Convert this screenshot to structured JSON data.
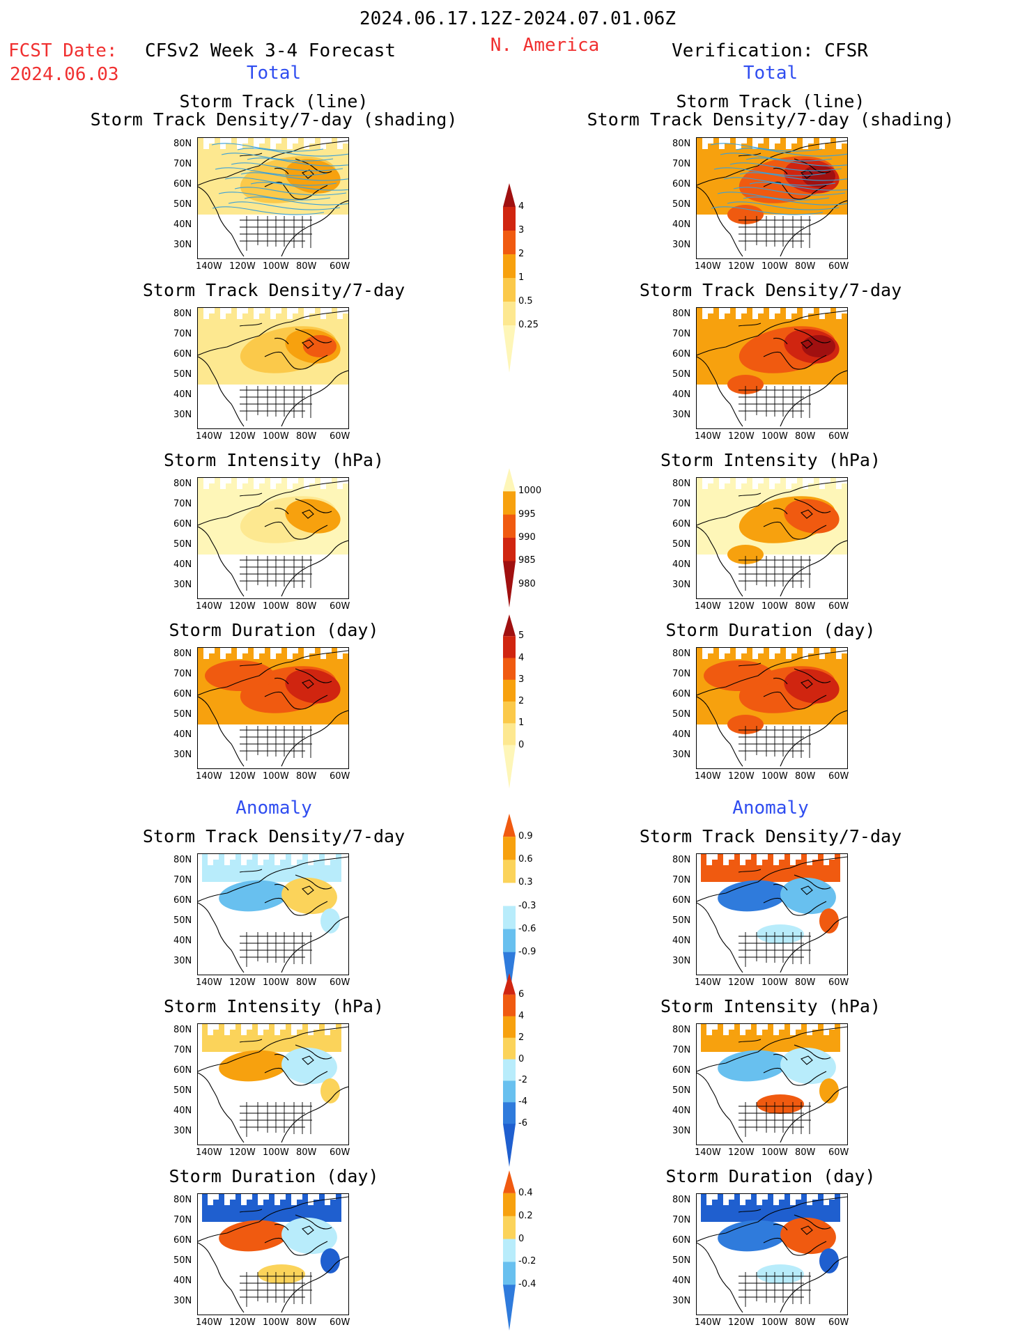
{
  "header": {
    "period": "2024.06.17.12Z-2024.07.01.06Z",
    "fcst_label": "FCST Date:",
    "fcst_date": "2024.06.03",
    "model_title": "CFSv2 Week 3-4 Forecast",
    "region": "N. America",
    "verification": "Verification: CFSR"
  },
  "sections": {
    "total": "Total",
    "anomaly": "Anomaly"
  },
  "titles": {
    "track_line": "Storm Track (line)",
    "track_shading": "Storm Track Density/7-day (shading)",
    "density": "Storm Track Density/7-day",
    "intensity": "Storm Intensity (hPa)",
    "duration": "Storm Duration (day)"
  },
  "axes": {
    "lat_ticks": [
      "80N",
      "70N",
      "60N",
      "50N",
      "40N",
      "30N"
    ],
    "lon_ticks": [
      "140W",
      "120W",
      "100W",
      "80W",
      "60W"
    ]
  },
  "colorbars": [
    {
      "id": "density_total",
      "labels": [
        "4",
        "3",
        "2",
        "1",
        "0.5",
        "0.25"
      ],
      "colors": [
        "#a01010",
        "#d02510",
        "#f05a10",
        "#f7a10e",
        "#fbc94a",
        "#fde890",
        "#fef6b8"
      ]
    },
    {
      "id": "intensity_total",
      "labels": [
        "1000",
        "995",
        "990",
        "985",
        "980"
      ],
      "colors": [
        "#fef6b8",
        "#f7a10e",
        "#f05a10",
        "#d02510",
        "#a01010"
      ]
    },
    {
      "id": "duration_total",
      "labels": [
        "5",
        "4",
        "3",
        "2",
        "1",
        "0"
      ],
      "colors": [
        "#a01010",
        "#d02510",
        "#f05a10",
        "#f7a10e",
        "#fbc94a",
        "#fde890",
        "#fef6b8"
      ]
    },
    {
      "id": "density_anom",
      "labels": [
        "0.9",
        "0.6",
        "0.3",
        "-0.3",
        "-0.6",
        "-0.9"
      ],
      "colors": [
        "#f05a10",
        "#f7a10e",
        "#fbd35a",
        "#ffffff",
        "#b8ecfb",
        "#68c0ef",
        "#2f7bdc"
      ]
    },
    {
      "id": "intensity_anom",
      "labels": [
        "6",
        "4",
        "2",
        "0",
        "-2",
        "-4",
        "-6"
      ],
      "colors": [
        "#d02510",
        "#f05a10",
        "#f7a10e",
        "#fbd35a",
        "#b8ecfb",
        "#68c0ef",
        "#2f7bdc",
        "#1f5fcf"
      ]
    },
    {
      "id": "duration_anom",
      "labels": [
        "0.4",
        "0.2",
        "0",
        "-0.2",
        "-0.4"
      ],
      "colors": [
        "#f05a10",
        "#f7a10e",
        "#fbd35a",
        "#b8ecfb",
        "#68c0ef",
        "#2f7bdc"
      ]
    }
  ],
  "panels": [
    {
      "id": "l1",
      "pal": "total",
      "fill": [
        "#fde890",
        "#fbc94a",
        "#f7a10e"
      ],
      "tracks": true
    },
    {
      "id": "r1",
      "pal": "total",
      "fill": [
        "#f7a10e",
        "#f05a10",
        "#d02510",
        "#a01010"
      ],
      "tracks": true
    },
    {
      "id": "l2",
      "pal": "total",
      "fill": [
        "#fde890",
        "#fbc94a",
        "#f7a10e",
        "#f05a10"
      ],
      "tracks": false
    },
    {
      "id": "r2",
      "pal": "total",
      "fill": [
        "#f7a10e",
        "#f05a10",
        "#d02510",
        "#a01010"
      ],
      "tracks": false
    },
    {
      "id": "l3",
      "pal": "int",
      "fill": [
        "#fef6b8",
        "#fde890",
        "#f7a10e"
      ],
      "tracks": false
    },
    {
      "id": "r3",
      "pal": "int",
      "fill": [
        "#fef6b8",
        "#f7a10e",
        "#f05a10"
      ],
      "tracks": false
    },
    {
      "id": "l4",
      "pal": "dur",
      "fill": [
        "#f7a10e",
        "#f05a10",
        "#d02510"
      ],
      "tracks": false
    },
    {
      "id": "r4",
      "pal": "dur",
      "fill": [
        "#f7a10e",
        "#f05a10",
        "#d02510"
      ],
      "tracks": false
    },
    {
      "id": "l5",
      "pal": "anom",
      "fill": [
        "#b8ecfb",
        "#68c0ef",
        "#fbd35a"
      ],
      "tracks": false
    },
    {
      "id": "r5",
      "pal": "anom",
      "fill": [
        "#f05a10",
        "#2f7bdc",
        "#68c0ef",
        "#b8ecfb"
      ],
      "tracks": false
    },
    {
      "id": "l6",
      "pal": "anom",
      "fill": [
        "#fbd35a",
        "#f7a10e",
        "#b8ecfb"
      ],
      "tracks": false
    },
    {
      "id": "r6",
      "pal": "anom",
      "fill": [
        "#f7a10e",
        "#68c0ef",
        "#b8ecfb",
        "#f05a10"
      ],
      "tracks": false
    },
    {
      "id": "l7",
      "pal": "anom",
      "fill": [
        "#1f5fcf",
        "#f05a10",
        "#b8ecfb",
        "#fbd35a"
      ],
      "tracks": false
    },
    {
      "id": "r7",
      "pal": "anom",
      "fill": [
        "#1f5fcf",
        "#2f7bdc",
        "#f05a10",
        "#b8ecfb"
      ],
      "tracks": false
    }
  ]
}
